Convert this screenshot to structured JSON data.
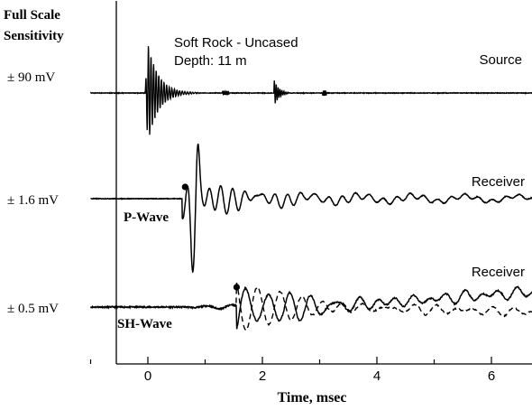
{
  "chart_data": {
    "type": "line",
    "title": "Soft Rock - Uncased",
    "subtitle": "Depth: 11 m",
    "xlabel": "Time, msec",
    "xlim": [
      -1.0,
      6.75
    ],
    "x_ticks": [
      "0",
      "2",
      "4",
      "6"
    ],
    "y_header": [
      "Full Scale",
      "Sensitivity"
    ],
    "traces": [
      {
        "name": "Source",
        "sensitivity": "± 90 mV",
        "wave_label": "",
        "first_arrival_ms": 0.0
      },
      {
        "name": "Receiver",
        "sensitivity": "± 1.6 mV",
        "wave_label": "P-Wave",
        "first_arrival_ms": 0.65
      },
      {
        "name": "Receiver",
        "sensitivity": "± 0.5 mV",
        "wave_label": "SH-Wave",
        "first_arrival_ms": 1.55
      }
    ],
    "colors": {
      "trace": "#000000",
      "axis": "#000000",
      "background": "#ffffff"
    }
  }
}
